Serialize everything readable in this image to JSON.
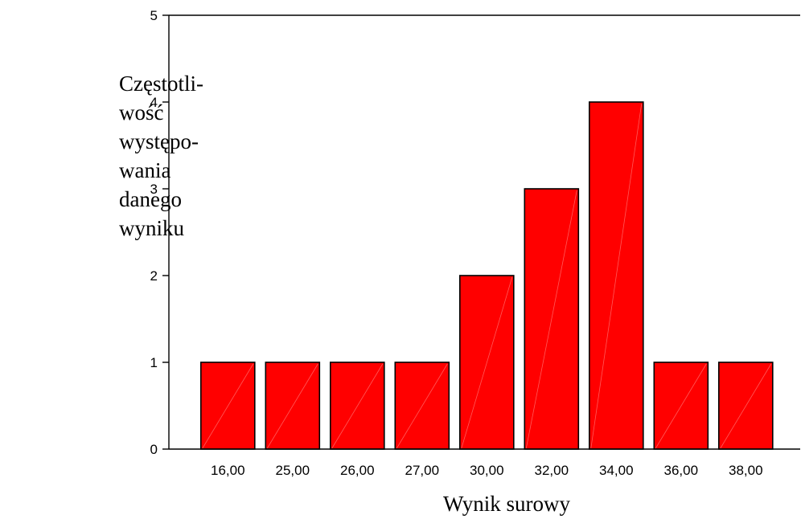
{
  "chart_data": {
    "type": "bar",
    "categories": [
      "16,00",
      "25,00",
      "26,00",
      "27,00",
      "30,00",
      "32,00",
      "34,00",
      "36,00",
      "38,00"
    ],
    "values": [
      1,
      1,
      1,
      1,
      2,
      3,
      4,
      1,
      1
    ],
    "ylabel_lines": [
      "Częstotli-",
      "wość",
      "występo-",
      "wania",
      "danego",
      "wyniku"
    ],
    "xlabel": "Wynik surowy",
    "ylim": [
      0,
      5
    ],
    "yticks": [
      "0",
      "1",
      "2",
      "3",
      "4",
      "5"
    ],
    "grid": false,
    "bar_color": "#ff0000"
  }
}
